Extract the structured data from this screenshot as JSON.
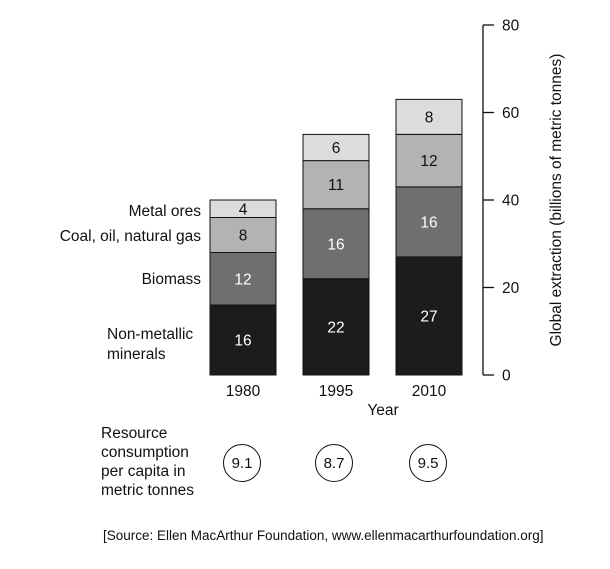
{
  "chart_data": {
    "type": "bar",
    "stacked": true,
    "categories": [
      "1980",
      "1995",
      "2010"
    ],
    "series": [
      {
        "name": "Non-metallic minerals",
        "values": [
          16,
          22,
          27
        ],
        "color": "#1c1c1c",
        "label_color": "#ffffff"
      },
      {
        "name": "Biomass",
        "values": [
          12,
          16,
          16
        ],
        "color": "#6f6f6f",
        "label_color": "#ffffff"
      },
      {
        "name": "Coal, oil, natural gas",
        "values": [
          8,
          11,
          12
        ],
        "color": "#b3b3b3",
        "label_color": "#111111"
      },
      {
        "name": "Metal ores",
        "values": [
          4,
          6,
          8
        ],
        "color": "#dcdcdc",
        "label_color": "#111111"
      }
    ],
    "legend_labels": {
      "metal": "Metal ores",
      "coal": "Coal, oil, natural gas",
      "biomass": "Biomass",
      "minerals_line1": "Non-metallic",
      "minerals_line2": "minerals"
    },
    "xlabel": "Year",
    "ylabel": "Global extraction (billions of metric tonnes)",
    "ylim": [
      0,
      80
    ],
    "yticks": [
      0,
      20,
      40,
      60,
      80
    ],
    "y_axis_position": "right",
    "legend": "left, labels beside 1980 bar",
    "grid": false
  },
  "resource_consumption": {
    "label_lines": [
      "Resource",
      "consumption",
      "per capita in",
      "metric tonnes"
    ],
    "values": [
      "9.1",
      "8.7",
      "9.5"
    ]
  },
  "source_note": "[Source: Ellen MacArthur Foundation, www.ellenmacarthurfoundation.org]"
}
